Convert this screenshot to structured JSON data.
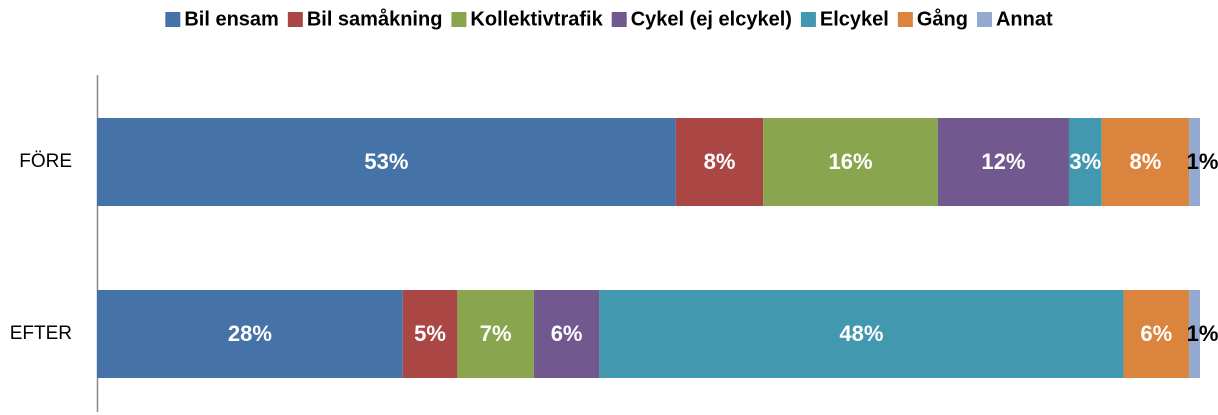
{
  "chart_data": {
    "type": "bar",
    "orientation": "horizontal",
    "stacked": true,
    "categories": [
      "FÖRE",
      "EFTER"
    ],
    "series": [
      {
        "name": "Bil ensam",
        "color": "#4572a7",
        "values": [
          53,
          28
        ],
        "value_labels": [
          "53%",
          "28%"
        ]
      },
      {
        "name": "Bil samåkning",
        "color": "#aa4643",
        "values": [
          8,
          5
        ],
        "value_labels": [
          "8%",
          "5%"
        ]
      },
      {
        "name": "Kollektivtrafik",
        "color": "#89a54e",
        "values": [
          16,
          7
        ],
        "value_labels": [
          "16%",
          "7%"
        ]
      },
      {
        "name": "Cykel (ej elcykel)",
        "color": "#71588f",
        "values": [
          12,
          6
        ],
        "value_labels": [
          "12%",
          "6%"
        ]
      },
      {
        "name": "Elcykel",
        "color": "#4198af",
        "values": [
          3,
          48
        ],
        "value_labels": [
          "3%",
          "48%"
        ]
      },
      {
        "name": "Gång",
        "color": "#db843d",
        "values": [
          8,
          6
        ],
        "value_labels": [
          "8%",
          "6%"
        ]
      },
      {
        "name": "Annat",
        "color": "#93a9cf",
        "values": [
          1,
          1
        ],
        "value_labels": [
          "1%",
          "1%"
        ]
      }
    ],
    "legend": "top"
  }
}
